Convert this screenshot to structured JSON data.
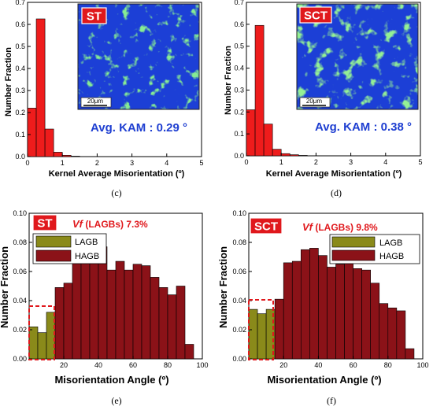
{
  "colors": {
    "kam_bar": "#ee1c1c",
    "lagb_bar": "#8a8a1a",
    "hagb_bar": "#8b1218",
    "tag_bg": "#e0181c",
    "kam_text": "#1f3fd1",
    "vf_text": "#e0181c",
    "dashed_box": "#e0181c",
    "map_blue": "#1c3fd6",
    "map_green": "#3dd64a"
  },
  "panels": [
    {
      "tag": "ST",
      "caption": "",
      "kam_label": "Avg. KAM : 0.29 °",
      "scalebar": "20μm"
    },
    {
      "tag": "SCT",
      "caption": "",
      "kam_label": "Avg. KAM : 0.38 °",
      "scalebar": "20μm"
    },
    {
      "tag": "ST",
      "caption": "(e)",
      "vf_symbol": "Vf",
      "vf_rest": " (LAGBs) 7.3%",
      "legend": [
        "LAGB",
        "HAGB"
      ]
    },
    {
      "tag": "SCT",
      "caption": "(f)",
      "vf_symbol": "Vf",
      "vf_rest": " (LAGBs) 9.8%",
      "legend": [
        "LAGB",
        "HAGB"
      ]
    }
  ],
  "captions_top": [
    "(c)",
    "(d)"
  ],
  "chart_data": [
    {
      "type": "bar",
      "xlabel": "Kernel Average Misorientation (º)",
      "ylabel": "Number Fraction",
      "xlim": [
        0,
        5
      ],
      "ylim": [
        0,
        0.7
      ],
      "xticks": [
        "0",
        "1",
        "2",
        "3",
        "4",
        "5"
      ],
      "yticks": [
        "0.0",
        "0.1",
        "0.2",
        "0.3",
        "0.4",
        "0.5",
        "0.6",
        "0.7"
      ],
      "bin_width": 0.25,
      "x": [
        0.0,
        0.25,
        0.5,
        0.75,
        1.0,
        1.25
      ],
      "values": [
        0.22,
        0.625,
        0.125,
        0.02,
        0.006,
        0.002
      ]
    },
    {
      "type": "bar",
      "xlabel": "Kernel Average Misorientation (º)",
      "ylabel": "Number Fraction",
      "xlim": [
        0,
        5
      ],
      "ylim": [
        0,
        0.7
      ],
      "xticks": [
        "0",
        "1",
        "2",
        "3",
        "4",
        "5"
      ],
      "yticks": [
        "0.0",
        "0.1",
        "0.2",
        "0.3",
        "0.4",
        "0.5",
        "0.6",
        "0.7"
      ],
      "bin_width": 0.25,
      "x": [
        0.0,
        0.25,
        0.5,
        0.75,
        1.0,
        1.25,
        1.5
      ],
      "values": [
        0.21,
        0.595,
        0.145,
        0.03,
        0.01,
        0.005,
        0.002
      ]
    },
    {
      "type": "bar",
      "xlabel": "Misorientation Angle (º)",
      "ylabel": "Number Fraction",
      "xlim": [
        0,
        100
      ],
      "ylim": [
        0,
        0.1
      ],
      "xticks": [
        "20",
        "40",
        "60",
        "80",
        "100"
      ],
      "yticks": [
        "0.00",
        "0.02",
        "0.04",
        "0.06",
        "0.08",
        "0.10"
      ],
      "bin_width": 5,
      "x": [
        2.5,
        7.5,
        12.5,
        17.5,
        22.5,
        27.5,
        32.5,
        37.5,
        42.5,
        47.5,
        52.5,
        57.5,
        62.5,
        67.5,
        72.5,
        77.5,
        82.5,
        87.5,
        92.5
      ],
      "series": [
        {
          "name": "LAGB",
          "values": [
            0.022,
            0.018,
            0.032,
            null,
            null,
            null,
            null,
            null,
            null,
            null,
            null,
            null,
            null,
            null,
            null,
            null,
            null,
            null,
            null
          ]
        },
        {
          "name": "HAGB",
          "values": [
            null,
            null,
            null,
            0.049,
            0.052,
            0.071,
            0.073,
            0.078,
            0.077,
            0.061,
            0.067,
            0.061,
            0.065,
            0.064,
            0.056,
            0.049,
            0.044,
            0.05,
            0.01
          ]
        }
      ]
    },
    {
      "type": "bar",
      "xlabel": "Misorientation Angle (º)",
      "ylabel": "Number Fraction",
      "xlim": [
        0,
        100
      ],
      "ylim": [
        0,
        0.1
      ],
      "xticks": [
        "20",
        "40",
        "60",
        "80",
        "100"
      ],
      "yticks": [
        "0.00",
        "0.02",
        "0.04",
        "0.06",
        "0.08",
        "0.10"
      ],
      "bin_width": 5,
      "x": [
        2.5,
        7.5,
        12.5,
        17.5,
        22.5,
        27.5,
        32.5,
        37.5,
        42.5,
        47.5,
        52.5,
        57.5,
        62.5,
        67.5,
        72.5,
        77.5,
        82.5,
        87.5,
        92.5
      ],
      "series": [
        {
          "name": "LAGB",
          "values": [
            0.034,
            0.031,
            0.034,
            null,
            null,
            null,
            null,
            null,
            null,
            null,
            null,
            null,
            null,
            null,
            null,
            null,
            null,
            null,
            null
          ]
        },
        {
          "name": "HAGB",
          "values": [
            null,
            null,
            null,
            0.041,
            0.066,
            0.067,
            0.075,
            0.076,
            0.071,
            0.063,
            0.065,
            0.068,
            0.062,
            0.061,
            0.052,
            0.038,
            0.035,
            0.033,
            0.007
          ]
        }
      ]
    }
  ]
}
